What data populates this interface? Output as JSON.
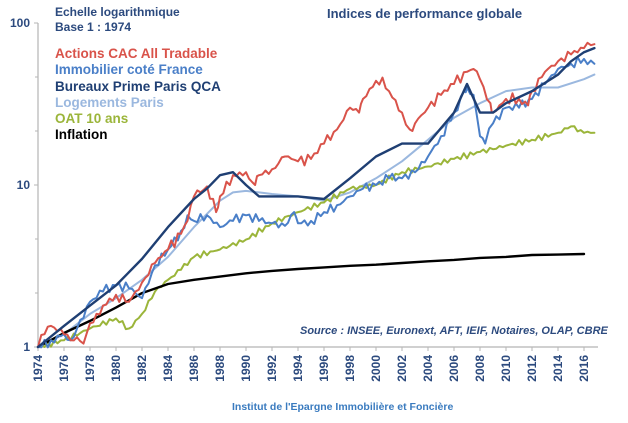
{
  "chart_data": {
    "type": "line",
    "title": "Indices de performance globale",
    "notes": [
      "Echelle logarithmique",
      "Base 1 : 1974"
    ],
    "source": "Source : INSEE, Euronext, AFT, IEIF, Notaires, OLAP, CBRE",
    "footer": "Institut de l'Epargne Immobilière et Foncière",
    "xlabel": "",
    "ylabel": "",
    "yscale": "log",
    "ylim": [
      1,
      100
    ],
    "xlim": [
      1974,
      2017
    ],
    "y_ticks": [
      "1",
      "10",
      "100"
    ],
    "x_ticks": [
      "1974",
      "1976",
      "1978",
      "1980",
      "1982",
      "1984",
      "1986",
      "1988",
      "1990",
      "1992",
      "1994",
      "1996",
      "1998",
      "2000",
      "2002",
      "2004",
      "2006",
      "2008",
      "2010",
      "2012",
      "2014",
      "2016"
    ],
    "grid": false,
    "legend": "top-left",
    "series": [
      {
        "name": "Actions CAC All Tradable",
        "color": "#d9534a",
        "x": [
          1974,
          1974.5,
          1975,
          1975.5,
          1976,
          1976.5,
          1977,
          1977.5,
          1978,
          1978.5,
          1979,
          1980,
          1981,
          1981.5,
          1982,
          1983,
          1984,
          1985,
          1985.5,
          1986,
          1986.5,
          1987,
          1987.7,
          1988,
          1989,
          1990,
          1990.7,
          1991,
          1992,
          1993,
          1994,
          1995,
          1996,
          1997,
          1998,
          1998.7,
          1999,
          2000,
          2000.5,
          2001,
          2002,
          2002.6,
          2003,
          2004,
          2005,
          2006,
          2007,
          2007.5,
          2008,
          2008.8,
          2009,
          2010,
          2011,
          2011.7,
          2012,
          2013,
          2014,
          2015,
          2016,
          2016.8
        ],
        "values": [
          1,
          1.2,
          1.35,
          1.25,
          1.2,
          1.1,
          1.15,
          1.05,
          1.4,
          1.6,
          1.8,
          2.1,
          1.9,
          2.2,
          2.5,
          3.3,
          4.0,
          5.0,
          6.0,
          8.5,
          9.0,
          9.8,
          6.8,
          8.5,
          11.5,
          12,
          10,
          11.5,
          12.5,
          15,
          14,
          14.5,
          18,
          22,
          30,
          28,
          34,
          44,
          46,
          38,
          28,
          22,
          24,
          30,
          36,
          42,
          50,
          52,
          45,
          32,
          28,
          34,
          34,
          31,
          38,
          50,
          58,
          64,
          70,
          74
        ]
      },
      {
        "name": "Immobilier coté France",
        "color": "#4a7fc8",
        "x": [
          1974,
          1975,
          1976,
          1976.5,
          1977,
          1978,
          1979,
          1980,
          1981,
          1982,
          1983,
          1984,
          1985,
          1985.5,
          1986,
          1987,
          1988,
          1989,
          1990,
          1991,
          1992,
          1993,
          1993.7,
          1994,
          1995,
          1996,
          1997,
          1998,
          1999,
          2000,
          2001,
          2002,
          2003,
          2004,
          2005,
          2006,
          2006.8,
          2007,
          2007.5,
          2008,
          2008.4,
          2009,
          2010,
          2011,
          2012,
          2013,
          2014,
          2015,
          2016,
          2016.8
        ],
        "values": [
          1,
          1.1,
          1.2,
          1.1,
          1.3,
          1.9,
          2.2,
          2.4,
          2.3,
          2.0,
          3.2,
          4.0,
          5.2,
          6.5,
          6.0,
          6.5,
          5.5,
          6.0,
          6.5,
          6.0,
          5.8,
          5.6,
          6.8,
          5.8,
          6.0,
          6.8,
          7.5,
          8.5,
          9.5,
          10,
          11,
          11,
          12,
          15,
          20,
          28,
          38,
          40,
          36,
          20,
          18,
          24,
          30,
          30,
          34,
          42,
          52,
          56,
          60,
          56
        ]
      },
      {
        "name": "Bureaux Prime Paris QCA",
        "color": "#1f3f73",
        "x": [
          1974,
          1976,
          1978,
          1980,
          1982,
          1984,
          1986,
          1987,
          1988,
          1989,
          1990,
          1991,
          1992,
          1994,
          1996,
          1998,
          2000,
          2002,
          2004,
          2006,
          2007,
          2008,
          2009,
          2010,
          2012,
          2014,
          2015,
          2016,
          2016.8
        ],
        "values": [
          1,
          1.35,
          1.8,
          2.4,
          3.5,
          5.5,
          8.2,
          9.5,
          11.5,
          12,
          10,
          8.5,
          8.5,
          8.5,
          8.2,
          11,
          15,
          18,
          18,
          28,
          42,
          28,
          28,
          32,
          38,
          48,
          58,
          66,
          70
        ]
      },
      {
        "name": "Logements Paris",
        "color": "#9bb8df",
        "x": [
          1974,
          1976,
          1978,
          1980,
          1982,
          1984,
          1986,
          1988,
          1989,
          1990,
          1991,
          1992,
          1994,
          1996,
          1998,
          2000,
          2002,
          2004,
          2006,
          2008,
          2010,
          2012,
          2014,
          2016,
          2016.8
        ],
        "values": [
          1,
          1.2,
          1.6,
          2.0,
          2.6,
          3.6,
          5.5,
          8.0,
          9.0,
          9.2,
          9.0,
          8.8,
          8.5,
          8.0,
          9.0,
          11,
          14,
          19,
          26,
          32,
          38,
          40,
          40,
          45,
          48
        ]
      },
      {
        "name": "OAT 10 ans",
        "color": "#9bb53a",
        "x": [
          1974,
          1976,
          1978,
          1980,
          1981,
          1982,
          1983,
          1984,
          1985,
          1986,
          1988,
          1990,
          1992,
          1994,
          1996,
          1998,
          2000,
          2002,
          2004,
          2006,
          2008,
          2010,
          2012,
          2014,
          2015,
          2016,
          2016.8
        ],
        "values": [
          1,
          1.1,
          1.3,
          1.5,
          1.3,
          1.6,
          2.2,
          2.6,
          3.0,
          3.6,
          4.0,
          4.6,
          5.8,
          6.8,
          7.8,
          9.5,
          10,
          12,
          13,
          14.5,
          16,
          17.5,
          19,
          21,
          23,
          21,
          21
        ]
      },
      {
        "name": "Inflation",
        "color": "#000000",
        "x": [
          1974,
          1976,
          1978,
          1980,
          1982,
          1984,
          1986,
          1988,
          1990,
          1992,
          1994,
          1996,
          1998,
          2000,
          2002,
          2004,
          2006,
          2008,
          2010,
          2012,
          2014,
          2016
        ],
        "values": [
          1,
          1.22,
          1.45,
          1.75,
          2.15,
          2.45,
          2.6,
          2.72,
          2.85,
          2.95,
          3.03,
          3.1,
          3.17,
          3.22,
          3.3,
          3.38,
          3.45,
          3.55,
          3.6,
          3.7,
          3.72,
          3.75
        ]
      }
    ]
  }
}
